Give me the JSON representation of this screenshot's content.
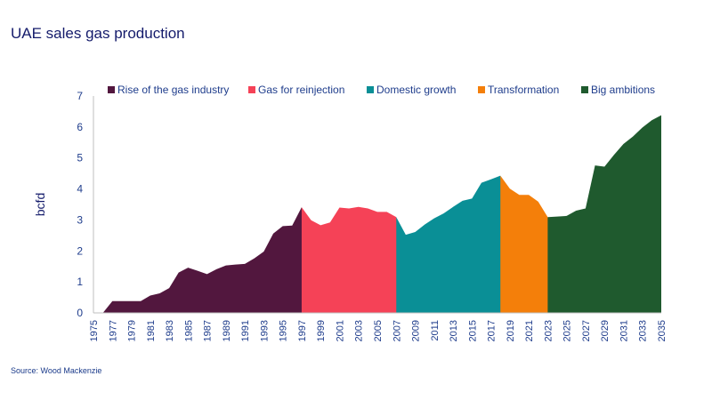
{
  "title": "UAE sales gas production",
  "source": "Source: Wood Mackenzie",
  "chart_data": {
    "type": "area",
    "title": "UAE sales gas production",
    "ylabel": "bcfd",
    "xlabel": "",
    "ylim": [
      0,
      7
    ],
    "yticks": [
      0,
      1,
      2,
      3,
      4,
      5,
      6,
      7
    ],
    "xlim": [
      1975,
      2035
    ],
    "xticks": [
      1975,
      1977,
      1979,
      1981,
      1983,
      1985,
      1987,
      1989,
      1991,
      1993,
      1995,
      1997,
      1999,
      2001,
      2003,
      2005,
      2007,
      2009,
      2011,
      2013,
      2015,
      2017,
      2019,
      2021,
      2023,
      2025,
      2027,
      2029,
      2031,
      2033,
      2035
    ],
    "grid": false,
    "legend": "top",
    "series": [
      {
        "name": "Rise of the gas industry",
        "color": "#52173e",
        "x": [
          1976,
          1977,
          1978,
          1979,
          1980,
          1981,
          1982,
          1983,
          1984,
          1985,
          1986,
          1987,
          1988,
          1989,
          1990,
          1991,
          1992,
          1993,
          1994,
          1995,
          1996,
          1997,
          1998
        ],
        "values": [
          0,
          0.38,
          0.38,
          0.38,
          0.38,
          0.56,
          0.63,
          0.8,
          1.3,
          1.46,
          1.36,
          1.25,
          1.41,
          1.53,
          1.56,
          1.58,
          1.76,
          1.98,
          2.56,
          2.8,
          2.82,
          3.41,
          0
        ]
      },
      {
        "name": "Gas for reinjection",
        "color": "#f54257",
        "x": [
          1997,
          1998,
          1999,
          2000,
          2001,
          2002,
          2003,
          2004,
          2005,
          2006,
          2007,
          2008
        ],
        "values": [
          3.41,
          2.99,
          2.83,
          2.92,
          3.4,
          3.37,
          3.42,
          3.37,
          3.26,
          3.26,
          3.09,
          0
        ]
      },
      {
        "name": "Domestic growth",
        "color": "#0a8f96",
        "x": [
          2007,
          2008,
          2009,
          2010,
          2011,
          2012,
          2013,
          2014,
          2015,
          2016,
          2017,
          2018,
          2019
        ],
        "values": [
          3.09,
          2.52,
          2.61,
          2.85,
          3.05,
          3.21,
          3.42,
          3.62,
          3.69,
          4.2,
          4.31,
          4.43,
          0
        ]
      },
      {
        "name": "Transformation",
        "color": "#f47f0a",
        "x": [
          2018,
          2019,
          2020,
          2021,
          2022,
          2023,
          2024
        ],
        "values": [
          4.43,
          4.01,
          3.81,
          3.81,
          3.59,
          3.09,
          0
        ]
      },
      {
        "name": "Big ambitions",
        "color": "#1f5a2e",
        "x": [
          2023,
          2024,
          2025,
          2026,
          2027,
          2028,
          2029,
          2030,
          2031,
          2032,
          2033,
          2034,
          2035
        ],
        "values": [
          3.09,
          3.11,
          3.13,
          3.3,
          3.37,
          4.76,
          4.72,
          5.1,
          5.45,
          5.69,
          5.98,
          6.22,
          6.38
        ]
      }
    ]
  }
}
